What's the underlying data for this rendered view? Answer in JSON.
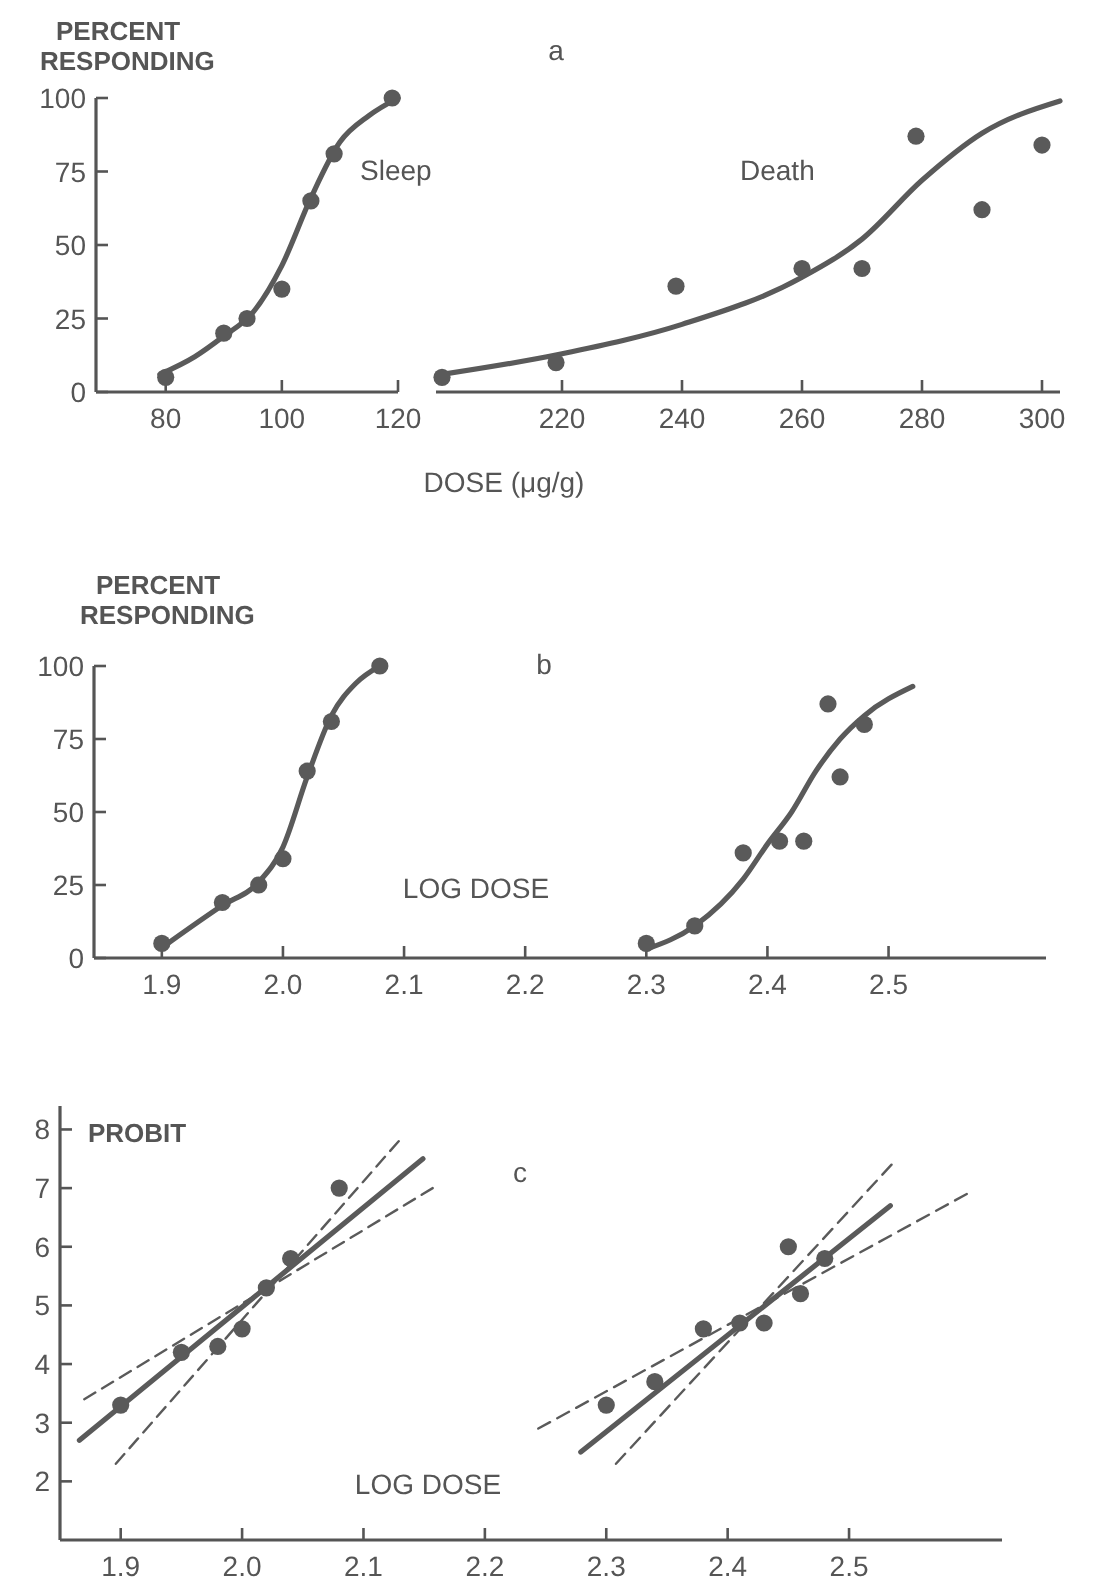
{
  "chart_data": [
    {
      "type": "scatter",
      "ylabel": "PERCENT RESPONDING",
      "xlabel": "DOSE (μg/g)",
      "xlim": [
        68,
        120
      ],
      "ylim": [
        0,
        100
      ],
      "xticks": [
        80,
        100,
        120
      ],
      "yticks": [
        0,
        25,
        50,
        75,
        100
      ],
      "series": [
        {
          "type": "scatter",
          "marker": "circle",
          "name": "Sleep",
          "color": "#5a5a5a",
          "x": [
            80,
            90,
            94,
            100,
            105,
            109,
            119
          ],
          "values": [
            5,
            20,
            25,
            35,
            65,
            81,
            100
          ]
        },
        {
          "type": "line",
          "color": "#5a5a5a",
          "x": [
            79,
            85,
            90,
            95,
            100,
            105,
            110,
            115,
            120
          ],
          "values": [
            6,
            12,
            19,
            27,
            43,
            66,
            85,
            94,
            100
          ]
        }
      ]
    },
    {
      "type": "scatter",
      "title": "a",
      "tick_labels": "x",
      "xlim": [
        199,
        303
      ],
      "ylim": [
        0,
        100
      ],
      "xticks": [
        220,
        240,
        260,
        280,
        300
      ],
      "series": [
        {
          "type": "scatter",
          "marker": "circle",
          "name": "Death",
          "color": "#5a5a5a",
          "x": [
            200,
            219,
            239,
            260,
            270,
            279,
            290,
            300
          ],
          "values": [
            5,
            10,
            36,
            42,
            42,
            87,
            62,
            84
          ]
        },
        {
          "type": "line",
          "color": "#5a5a5a",
          "x": [
            200,
            220,
            240,
            260,
            270,
            280,
            290,
            303
          ],
          "values": [
            6,
            13,
            23,
            39,
            52,
            72,
            88,
            99
          ]
        }
      ]
    },
    {
      "type": "scatter",
      "title": "b",
      "ylabel": "PERCENT RESPONDING",
      "xlabel": "LOG DOSE",
      "xlim": [
        1.844,
        2.63
      ],
      "ylim": [
        0,
        100
      ],
      "xticks": [
        1.9,
        {
          "value": 2.0,
          "label": "2.0"
        },
        2.1,
        2.2,
        2.3,
        2.4,
        2.5
      ],
      "yticks": [
        0,
        25,
        50,
        75,
        100
      ],
      "series": [
        {
          "type": "scatter",
          "marker": "circle",
          "color": "#5a5a5a",
          "x": [
            1.9,
            1.95,
            1.98,
            2.0,
            2.02,
            2.04,
            2.08
          ],
          "values": [
            5,
            19,
            25,
            34,
            64,
            81,
            100
          ]
        },
        {
          "type": "line",
          "color": "#5a5a5a",
          "x": [
            1.905,
            1.95,
            1.98,
            2.0,
            2.02,
            2.04,
            2.06,
            2.08
          ],
          "values": [
            5,
            18,
            26,
            38,
            62,
            83,
            94,
            100
          ]
        },
        {
          "type": "scatter",
          "marker": "circle",
          "color": "#5a5a5a",
          "x": [
            2.3,
            2.34,
            2.38,
            2.41,
            2.43,
            2.45,
            2.46,
            2.48
          ],
          "values": [
            5,
            11,
            36,
            40,
            40,
            87,
            62,
            80
          ]
        },
        {
          "type": "line",
          "color": "#5a5a5a",
          "x": [
            2.3,
            2.34,
            2.38,
            2.4,
            2.42,
            2.44,
            2.46,
            2.48,
            2.52
          ],
          "values": [
            3,
            11,
            27,
            39,
            50,
            64,
            75,
            83,
            93
          ]
        }
      ]
    },
    {
      "type": "scatter",
      "title": "c",
      "ylabel": "PROBIT",
      "xlabel": "LOG DOSE",
      "xlim": [
        1.85,
        2.626
      ],
      "ylim": [
        1,
        8.4
      ],
      "xticks": [
        1.9,
        {
          "value": 2.0,
          "label": "2.0"
        },
        2.1,
        2.2,
        2.3,
        2.4,
        2.5
      ],
      "yticks": [
        2,
        3,
        4,
        5,
        6,
        7,
        8
      ],
      "series": [
        {
          "type": "scatter",
          "marker": "circle",
          "color": "#5a5a5a",
          "x": [
            1.9,
            1.95,
            1.98,
            2.0,
            2.02,
            2.04,
            2.08
          ],
          "values": [
            3.3,
            4.2,
            4.3,
            4.6,
            5.3,
            5.8,
            7.0
          ]
        },
        {
          "type": "line",
          "color": "#5a5a5a",
          "x": [
            1.866,
            2.149
          ],
          "values": [
            2.7,
            7.5
          ]
        },
        {
          "type": "line",
          "line_style": "dashed",
          "color": "#5a5a5a",
          "x": [
            1.87,
            2.157
          ],
          "values": [
            3.4,
            7.0
          ]
        },
        {
          "type": "line",
          "line_style": "dashed",
          "color": "#5a5a5a",
          "x": [
            1.896,
            2.129
          ],
          "values": [
            2.3,
            7.8
          ]
        },
        {
          "type": "scatter",
          "marker": "circle",
          "color": "#5a5a5a",
          "x": [
            2.3,
            2.34,
            2.38,
            2.41,
            2.43,
            2.45,
            2.46,
            2.48
          ],
          "values": [
            3.3,
            3.7,
            4.6,
            4.7,
            4.7,
            6.0,
            5.2,
            5.8
          ]
        },
        {
          "type": "line",
          "color": "#5a5a5a",
          "x": [
            2.279,
            2.534
          ],
          "values": [
            2.5,
            6.7
          ]
        },
        {
          "type": "line",
          "line_style": "dashed",
          "color": "#5a5a5a",
          "x": [
            2.244,
            2.597
          ],
          "values": [
            2.9,
            6.9
          ]
        },
        {
          "type": "line",
          "line_style": "dashed",
          "color": "#5a5a5a",
          "x": [
            2.308,
            2.535
          ],
          "values": [
            2.3,
            7.4
          ]
        }
      ]
    }
  ]
}
